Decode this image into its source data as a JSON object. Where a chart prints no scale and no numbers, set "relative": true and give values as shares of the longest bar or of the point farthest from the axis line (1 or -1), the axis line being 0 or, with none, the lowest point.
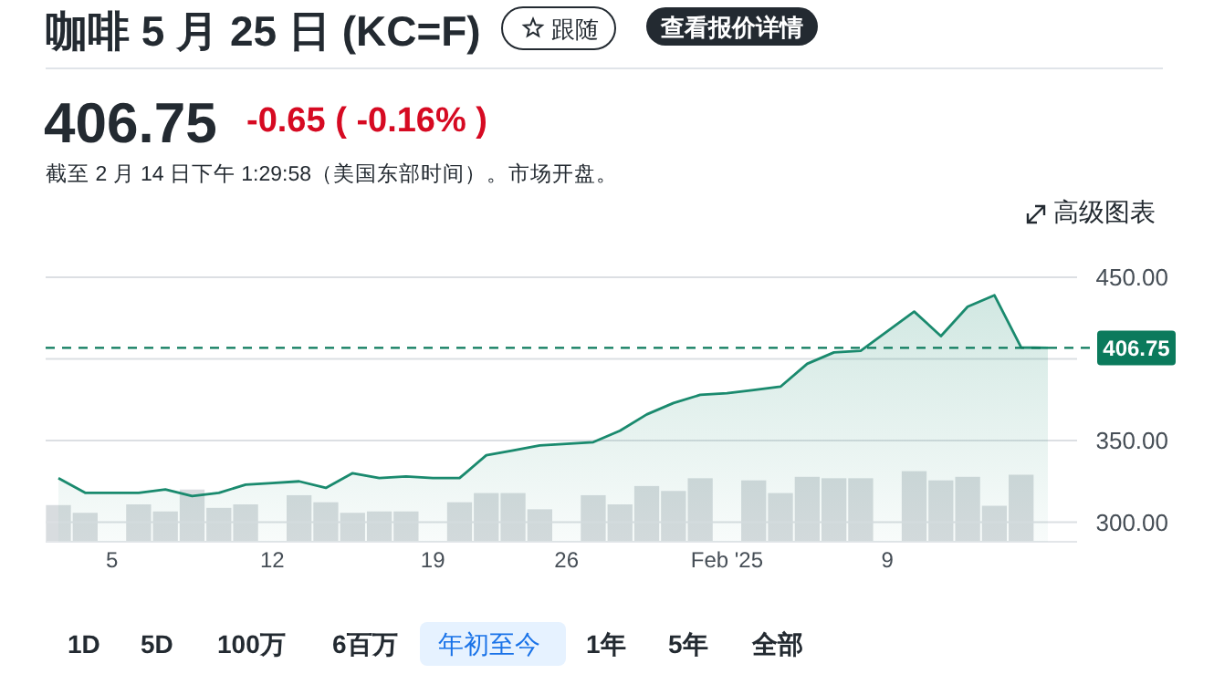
{
  "chart_data": [
    {
      "type": "area",
      "title": "咖啡 5 月 25 日 (KC=F)",
      "subtitle": "截至 2 月 14 日下午 1:29:58（美国东部时间）。市场开盘。",
      "annotations": [
        "跟随",
        "查看报价详情",
        "406.75",
        "-0.65 ( -0.16% )",
        "高级图表",
        "1D",
        "5D",
        "100万",
        "6百万",
        "年初至今",
        "1年",
        "5年",
        "全部"
      ],
      "categories": [
        null,
        null,
        "5",
        null,
        null,
        null,
        null,
        null,
        "12",
        null,
        null,
        null,
        null,
        null,
        "19",
        null,
        null,
        null,
        null,
        "26",
        null,
        null,
        null,
        null,
        null,
        "Feb '25",
        null,
        null,
        null,
        null,
        null,
        "9",
        null,
        null,
        null,
        null,
        null,
        null
      ],
      "series": [
        {
          "color": "#1a8a6e",
          "values": [
            327,
            318,
            318,
            318,
            320,
            316,
            318,
            323,
            324,
            325,
            321,
            330,
            327,
            328,
            327,
            327,
            341,
            344,
            347,
            348,
            349,
            356,
            366,
            373,
            378,
            379,
            381,
            383,
            397,
            404,
            405,
            417,
            429,
            414,
            432,
            439,
            407,
            406.75
          ]
        }
      ],
      "ylim": [
        288,
        450
      ],
      "yticks": [
        {
          "value": 300,
          "label": "300.00"
        },
        {
          "value": 350,
          "label": "350.00"
        },
        {
          "value": 400,
          "label": null
        },
        {
          "value": 450,
          "label": "450.00"
        }
      ],
      "ref_lines": [
        {
          "axis": "y",
          "value": 406.75,
          "label": "406.75",
          "color": "#0b7a5c",
          "line_style": "dashed"
        }
      ],
      "grid": "y"
    },
    {
      "type": "bar",
      "relative": true,
      "categories": [
        null,
        null,
        null,
        null,
        null,
        null,
        null,
        null,
        null,
        null,
        null,
        null,
        null,
        null,
        null,
        null,
        null,
        null,
        null,
        null,
        null,
        null,
        null,
        null,
        null,
        null,
        null,
        null,
        null,
        null,
        null,
        null,
        null,
        null,
        null,
        null,
        null,
        null
      ],
      "series": [
        {
          "color": "#d8dcdf",
          "values": [
            0.52,
            0.41,
            null,
            0.53,
            0.43,
            0.74,
            0.48,
            0.53,
            null,
            0.66,
            0.56,
            0.41,
            0.43,
            0.43,
            null,
            0.56,
            0.69,
            0.69,
            0.46,
            null,
            0.66,
            0.53,
            0.79,
            0.72,
            0.9,
            null,
            0.87,
            0.69,
            0.92,
            0.9,
            0.9,
            null,
            1,
            0.87,
            0.92,
            0.51,
            0.95,
            null
          ]
        }
      ]
    }
  ]
}
